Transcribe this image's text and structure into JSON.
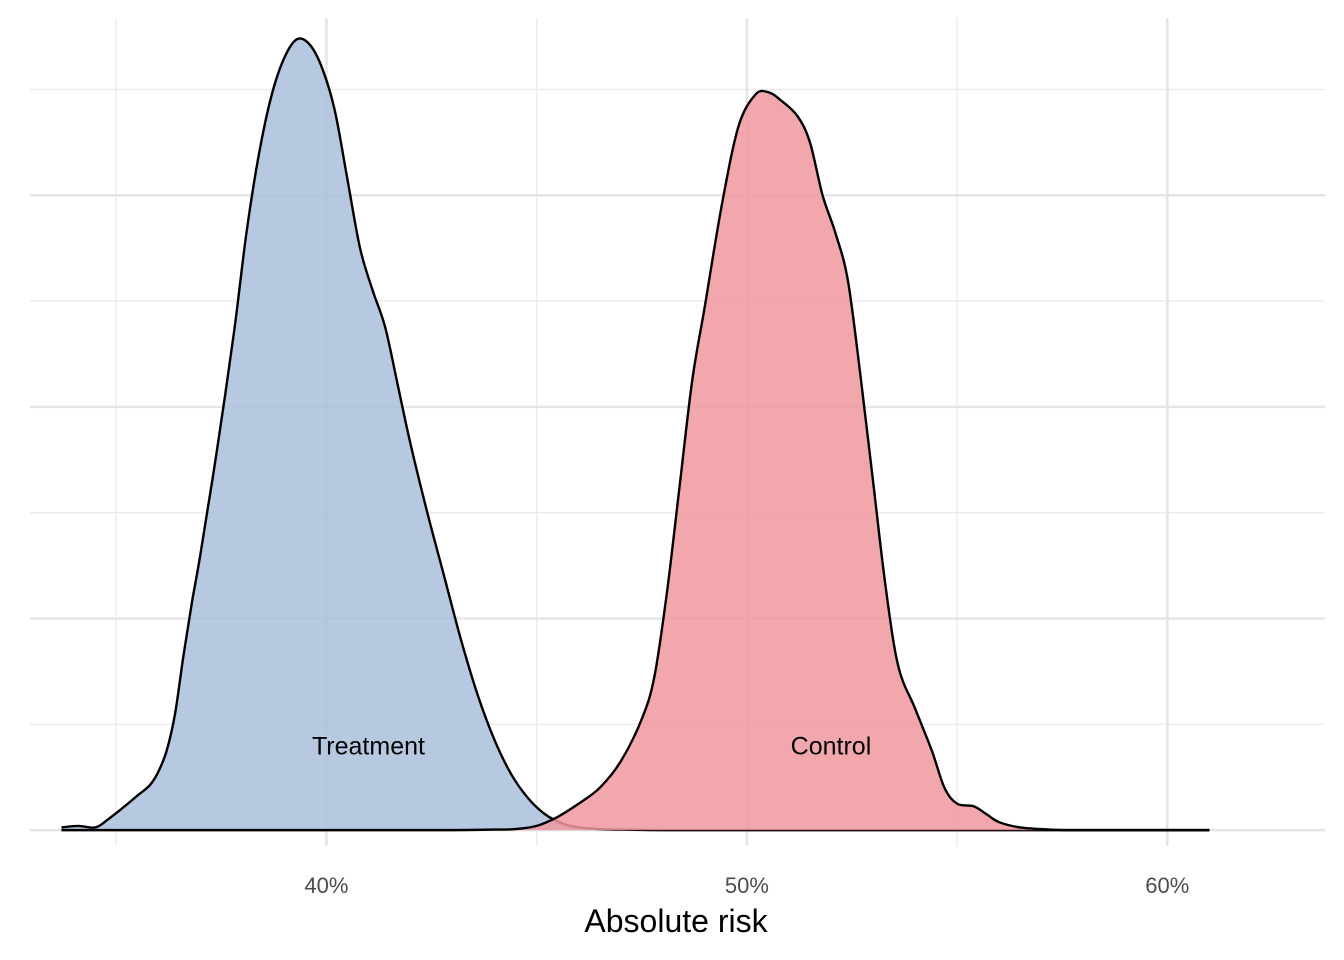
{
  "chart_data": {
    "type": "area",
    "subtype": "density",
    "title": "",
    "xlabel": "Absolute risk",
    "ylabel": "",
    "xlim": [
      0.3295,
      0.6375
    ],
    "ylim": [
      -0.3,
      15.35
    ],
    "x_ticks": [
      {
        "value": 0.4,
        "label": "40%"
      },
      {
        "value": 0.5,
        "label": "50%"
      },
      {
        "value": 0.6,
        "label": "60%"
      }
    ],
    "x_minor_ticks": [
      0.35,
      0.45,
      0.55
    ],
    "y_major_gridlines": [
      0,
      4,
      8,
      12
    ],
    "y_minor_gridlines": [
      2,
      6,
      10,
      14
    ],
    "y_tick_labels_shown": false,
    "grid": true,
    "legend": "none",
    "series": [
      {
        "name": "Treatment",
        "color": "#a9c0dc",
        "label_at": {
          "x": 0.41,
          "y": 1.6
        },
        "points": [
          [
            0.337,
            0.05
          ],
          [
            0.341,
            0.08
          ],
          [
            0.345,
            0.05
          ],
          [
            0.348,
            0.2
          ],
          [
            0.352,
            0.45
          ],
          [
            0.355,
            0.65
          ],
          [
            0.358,
            0.85
          ],
          [
            0.36,
            1.1
          ],
          [
            0.362,
            1.5
          ],
          [
            0.364,
            2.2
          ],
          [
            0.366,
            3.3
          ],
          [
            0.368,
            4.3
          ],
          [
            0.37,
            5.2
          ],
          [
            0.374,
            7.2
          ],
          [
            0.378,
            9.4
          ],
          [
            0.381,
            11.3
          ],
          [
            0.384,
            12.8
          ],
          [
            0.387,
            13.9
          ],
          [
            0.39,
            14.6
          ],
          [
            0.393,
            14.95
          ],
          [
            0.396,
            14.85
          ],
          [
            0.399,
            14.4
          ],
          [
            0.402,
            13.6
          ],
          [
            0.405,
            12.3
          ],
          [
            0.408,
            11.0
          ],
          [
            0.411,
            10.2
          ],
          [
            0.414,
            9.5
          ],
          [
            0.417,
            8.4
          ],
          [
            0.42,
            7.3
          ],
          [
            0.424,
            6.0
          ],
          [
            0.428,
            4.8
          ],
          [
            0.432,
            3.6
          ],
          [
            0.436,
            2.55
          ],
          [
            0.44,
            1.7
          ],
          [
            0.444,
            1.05
          ],
          [
            0.448,
            0.6
          ],
          [
            0.452,
            0.3
          ],
          [
            0.456,
            0.13
          ],
          [
            0.46,
            0.05
          ],
          [
            0.465,
            0.02
          ],
          [
            0.47,
            0.01
          ],
          [
            0.48,
            0.0
          ],
          [
            0.49,
            0.0
          ],
          [
            0.5,
            0.0
          ],
          [
            0.51,
            0.0
          ],
          [
            0.52,
            0.0
          ],
          [
            0.53,
            0.0
          ],
          [
            0.54,
            0.0
          ],
          [
            0.55,
            0.0
          ],
          [
            0.56,
            0.0
          ],
          [
            0.57,
            0.0
          ],
          [
            0.58,
            0.0
          ],
          [
            0.59,
            0.0
          ],
          [
            0.6,
            0.0
          ],
          [
            0.61,
            0.0
          ]
        ]
      },
      {
        "name": "Control",
        "color": "#f0989f",
        "label_at": {
          "x": 0.52,
          "y": 1.6
        },
        "points": [
          [
            0.337,
            0.0
          ],
          [
            0.35,
            0.0
          ],
          [
            0.36,
            0.0
          ],
          [
            0.37,
            0.0
          ],
          [
            0.38,
            0.0
          ],
          [
            0.39,
            0.0
          ],
          [
            0.4,
            0.0
          ],
          [
            0.41,
            0.0
          ],
          [
            0.42,
            0.0
          ],
          [
            0.43,
            0.0
          ],
          [
            0.44,
            0.01
          ],
          [
            0.445,
            0.02
          ],
          [
            0.45,
            0.08
          ],
          [
            0.455,
            0.25
          ],
          [
            0.46,
            0.5
          ],
          [
            0.465,
            0.8
          ],
          [
            0.47,
            1.3
          ],
          [
            0.475,
            2.1
          ],
          [
            0.478,
            2.9
          ],
          [
            0.481,
            4.5
          ],
          [
            0.484,
            6.5
          ],
          [
            0.487,
            8.5
          ],
          [
            0.49,
            9.9
          ],
          [
            0.494,
            11.8
          ],
          [
            0.498,
            13.3
          ],
          [
            0.502,
            13.9
          ],
          [
            0.505,
            13.95
          ],
          [
            0.508,
            13.8
          ],
          [
            0.512,
            13.5
          ],
          [
            0.515,
            13.0
          ],
          [
            0.518,
            12.0
          ],
          [
            0.521,
            11.3
          ],
          [
            0.524,
            10.4
          ],
          [
            0.527,
            8.6
          ],
          [
            0.53,
            6.6
          ],
          [
            0.533,
            4.6
          ],
          [
            0.536,
            3.1
          ],
          [
            0.54,
            2.3
          ],
          [
            0.544,
            1.5
          ],
          [
            0.547,
            0.8
          ],
          [
            0.55,
            0.5
          ],
          [
            0.554,
            0.45
          ],
          [
            0.557,
            0.3
          ],
          [
            0.56,
            0.15
          ],
          [
            0.565,
            0.05
          ],
          [
            0.57,
            0.02
          ],
          [
            0.575,
            0.0
          ],
          [
            0.58,
            0.0
          ],
          [
            0.59,
            0.0
          ],
          [
            0.6,
            0.0
          ],
          [
            0.61,
            0.0
          ]
        ]
      }
    ]
  }
}
